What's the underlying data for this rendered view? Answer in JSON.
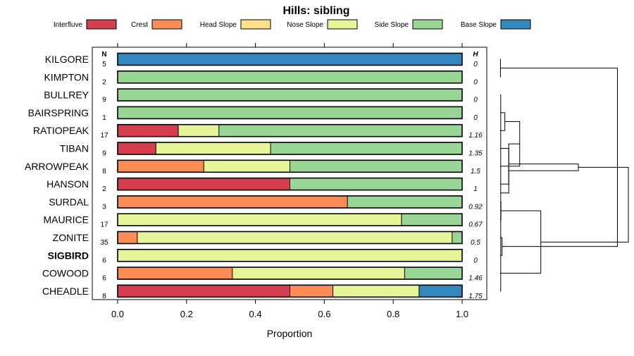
{
  "chart_data": {
    "type": "bar",
    "orientation": "horizontal",
    "stacked": true,
    "title": "Hills: sibling",
    "xlabel": "Proportion",
    "xlim": [
      0,
      1
    ],
    "xticks": [
      "0.0",
      "0.2",
      "0.4",
      "0.6",
      "0.8",
      "1.0"
    ],
    "n_header": "N",
    "h_header": "H",
    "highlight": "SIGBIRD",
    "series": [
      {
        "name": "Interfluve",
        "color": "#D53E4F"
      },
      {
        "name": "Crest",
        "color": "#FC8D59"
      },
      {
        "name": "Head Slope",
        "color": "#FEE08B"
      },
      {
        "name": "Nose Slope",
        "color": "#E6F598"
      },
      {
        "name": "Side Slope",
        "color": "#99D594"
      },
      {
        "name": "Base Slope",
        "color": "#3288BD"
      }
    ],
    "rows": [
      {
        "label": "KILGORE",
        "n": "5",
        "h": "0",
        "values": [
          0,
          0,
          0,
          0,
          0,
          1
        ]
      },
      {
        "label": "KIMPTON",
        "n": "2",
        "h": "0",
        "values": [
          0,
          0,
          0,
          0,
          1,
          0
        ]
      },
      {
        "label": "BULLREY",
        "n": "9",
        "h": "0",
        "values": [
          0,
          0,
          0,
          0,
          1,
          0
        ]
      },
      {
        "label": "BAIRSPRING",
        "n": "1",
        "h": "0",
        "values": [
          0,
          0,
          0,
          0,
          1,
          0
        ]
      },
      {
        "label": "RATIOPEAK",
        "n": "17",
        "h": "1.16",
        "values": [
          0.176,
          0,
          0,
          0.118,
          0.706,
          0
        ]
      },
      {
        "label": "TIBAN",
        "n": "9",
        "h": "1.35",
        "values": [
          0.111,
          0,
          0,
          0.333,
          0.556,
          0
        ]
      },
      {
        "label": "ARROWPEAK",
        "n": "8",
        "h": "1.5",
        "values": [
          0,
          0.25,
          0,
          0.25,
          0.5,
          0
        ]
      },
      {
        "label": "HANSON",
        "n": "2",
        "h": "1",
        "values": [
          0.5,
          0,
          0,
          0,
          0.5,
          0
        ]
      },
      {
        "label": "SURDAL",
        "n": "3",
        "h": "0.92",
        "values": [
          0,
          0.667,
          0,
          0,
          0.333,
          0
        ]
      },
      {
        "label": "MAURICE",
        "n": "17",
        "h": "0.67",
        "values": [
          0,
          0,
          0,
          0.824,
          0.176,
          0
        ]
      },
      {
        "label": "ZONITE",
        "n": "35",
        "h": "0.5",
        "values": [
          0,
          0.057,
          0,
          0.914,
          0.029,
          0
        ]
      },
      {
        "label": "SIGBIRD",
        "n": "6",
        "h": "0",
        "values": [
          0,
          0,
          0,
          1,
          0,
          0
        ]
      },
      {
        "label": "COWOOD",
        "n": "6",
        "h": "1.46",
        "values": [
          0,
          0.333,
          0,
          0.5,
          0.167,
          0
        ]
      },
      {
        "label": "CHEADLE",
        "n": "8",
        "h": "1.75",
        "values": [
          0.5,
          0.125,
          0,
          0.25,
          0,
          0.125
        ]
      }
    ],
    "dendrogram": {
      "merges": [
        {
          "a": 1,
          "b": 2,
          "height": 0.02
        },
        {
          "a": 3,
          "b": 14,
          "height": 0.035
        },
        {
          "a": 4,
          "b": 5,
          "height": 0.3
        },
        {
          "a": 6,
          "b": 16,
          "height": 0.55
        },
        {
          "a": 7,
          "b": 17,
          "height": 1.25
        },
        {
          "a": 9,
          "b": 10,
          "height": 0.05
        },
        {
          "a": 8,
          "b": 19,
          "height": 0.55
        },
        {
          "a": 11,
          "b": 12,
          "height": 0.12
        },
        {
          "a": 20,
          "b": 13,
          "height": 2.6
        },
        {
          "a": 18,
          "b": 21,
          "height": 5.0
        },
        {
          "a": 15,
          "b": 22,
          "height": 7.5
        },
        {
          "a": 23,
          "b": 24,
          "height": 8.2
        }
      ],
      "max_height": 8.2
    }
  }
}
